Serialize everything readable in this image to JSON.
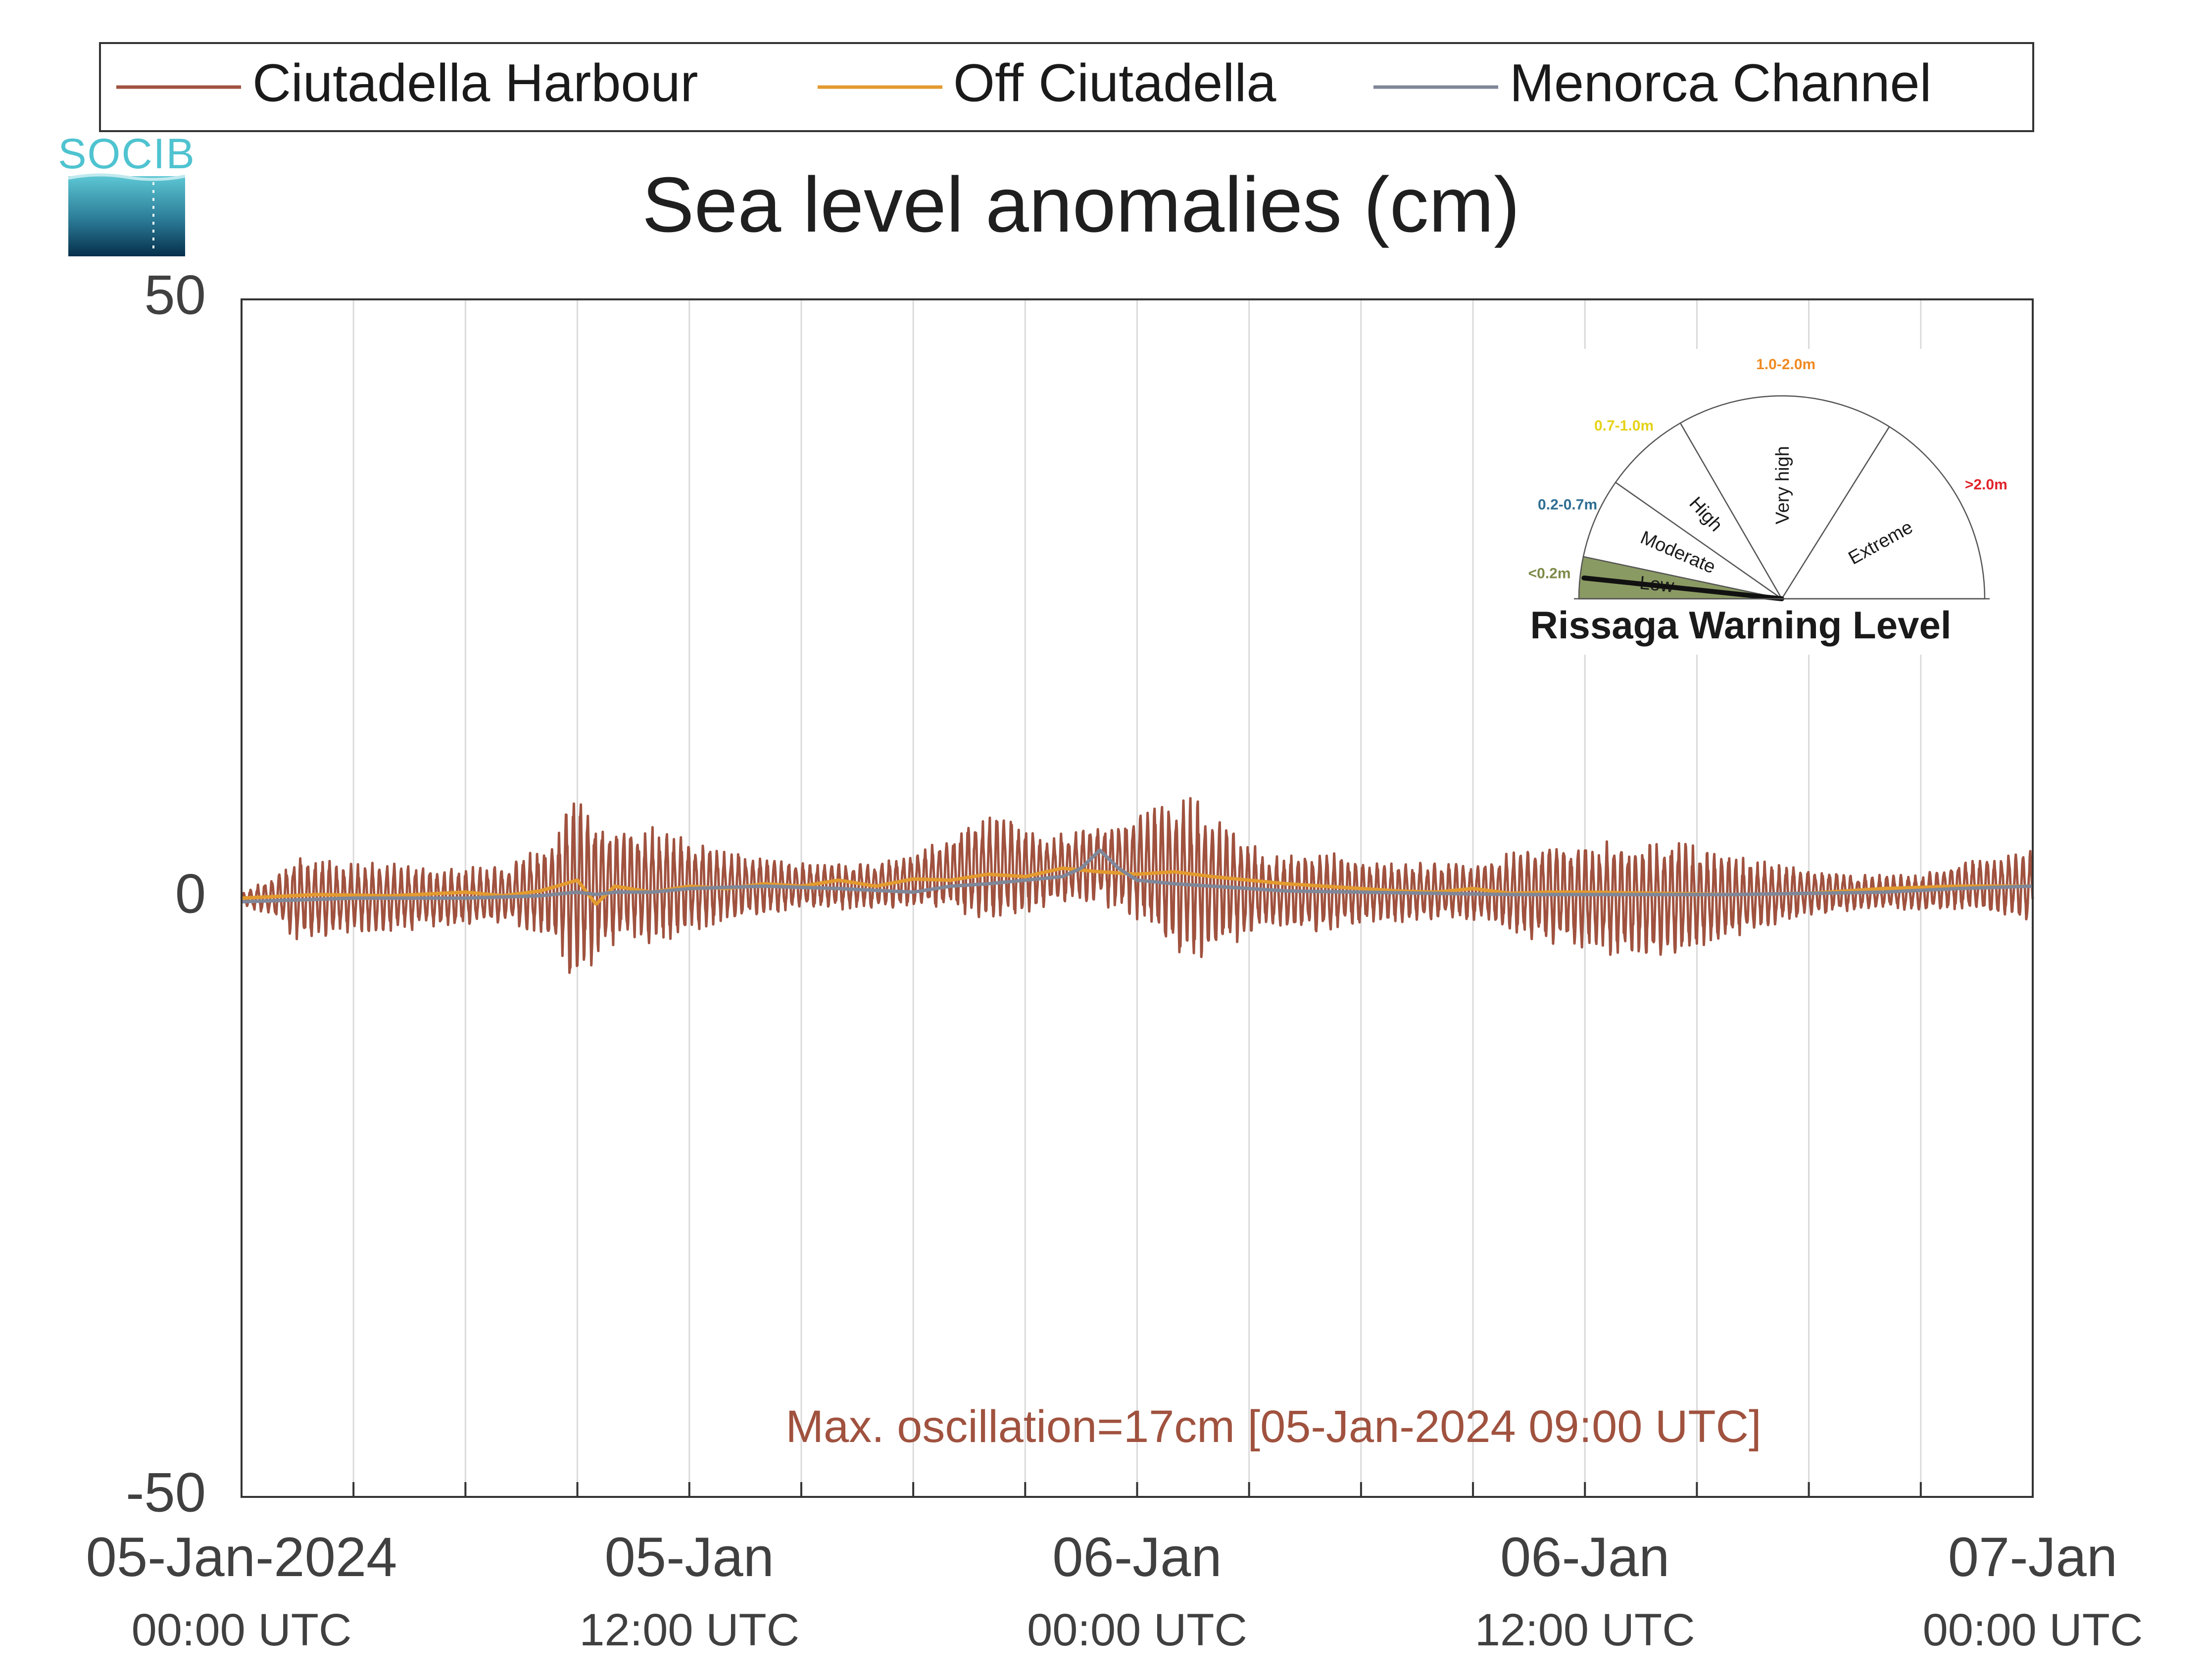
{
  "logo": {
    "text": "SOCIB",
    "colors": [
      "#4fc3d0",
      "#0a3a56"
    ]
  },
  "legend": {
    "entries": [
      {
        "label": "Ciutadella Harbour",
        "color": "#a0523f"
      },
      {
        "label": "Off Ciutadella",
        "color": "#e39a2f"
      },
      {
        "label": "Menorca Channel",
        "color": "#7f8799"
      }
    ]
  },
  "chart_data": {
    "type": "line",
    "title": "Sea level anomalies (cm)",
    "ylim": [
      -50,
      50
    ],
    "yticks": [
      50,
      0,
      -50
    ],
    "xlim": [
      0,
      48
    ],
    "x_unit": "hours from 05-Jan-2024 00:00 UTC",
    "xticks": [
      {
        "hour": 0,
        "date": "05-Jan-2024",
        "time": "00:00 UTC"
      },
      {
        "hour": 12,
        "date": "05-Jan",
        "time": "12:00 UTC"
      },
      {
        "hour": 24,
        "date": "06-Jan",
        "time": "00:00 UTC"
      },
      {
        "hour": 36,
        "date": "06-Jan",
        "time": "12:00 UTC"
      },
      {
        "hour": 48,
        "date": "07-Jan",
        "time": "00:00 UTC"
      }
    ],
    "grid_x_hours": [
      3,
      6,
      9,
      12,
      15,
      18,
      21,
      24,
      27,
      30,
      33,
      36,
      39,
      42,
      45
    ],
    "grid": true,
    "series": [
      {
        "name": "Ciutadella Harbour",
        "color": "#a0523f",
        "envelope": {
          "x_hours": [
            0,
            1,
            1.5,
            2.5,
            4,
            5.5,
            7,
            7.8,
            8.5,
            8.8,
            9,
            9.3,
            10,
            11,
            12,
            13,
            15,
            17,
            19,
            19.5,
            20.5,
            21.5,
            23,
            24,
            24.8,
            25.5,
            26.5,
            27.5,
            29,
            30.5,
            33,
            34.5,
            36,
            37,
            38.5,
            40,
            42,
            43.5,
            45,
            46,
            47,
            48
          ],
          "amplitude_cm": [
            0.5,
            2,
            4,
            3,
            3,
            2.5,
            2.5,
            3.5,
            5,
            8,
            8,
            7,
            5,
            5,
            4,
            3,
            2,
            2,
            3,
            4.5,
            4.5,
            3,
            3.5,
            4.5,
            6.5,
            7,
            5,
            3,
            3.5,
            2.5,
            2.5,
            4,
            4.5,
            5,
            5,
            3.5,
            2,
            1.5,
            1.5,
            2,
            2.5,
            3
          ],
          "baseline_cm": [
            0,
            0,
            0,
            0,
            0,
            0,
            0.2,
            0.5,
            0.8,
            1,
            1,
            1,
            1,
            1,
            1,
            1,
            1,
            1,
            2,
            2.5,
            2.5,
            2.2,
            3,
            2.5,
            2,
            1.5,
            1,
            0.5,
            0.5,
            0.5,
            0.5,
            0.5,
            0.2,
            0,
            0,
            0,
            0.5,
            0.5,
            0.5,
            1,
            1,
            1
          ]
        }
      },
      {
        "name": "Off Ciutadella",
        "color": "#e39a2f",
        "points_x_hours": [
          0,
          2,
          4,
          6,
          7,
          8,
          9,
          9.5,
          10,
          11,
          12,
          13,
          14,
          15,
          16,
          17,
          18,
          19,
          20,
          21,
          22,
          23,
          24,
          25,
          26,
          27,
          28,
          29,
          30,
          31,
          32,
          33,
          34,
          35,
          36,
          38,
          40,
          42,
          44,
          46,
          48
        ],
        "points_y_cm": [
          0,
          0.3,
          0.2,
          0.5,
          0.2,
          0.6,
          1.5,
          -0.5,
          1,
          0.5,
          1,
          0.8,
          1.2,
          1,
          1.5,
          1,
          1.6,
          1.5,
          2,
          1.8,
          2.5,
          2.2,
          2,
          2.2,
          1.8,
          1.5,
          1.2,
          1,
          0.8,
          0.6,
          0.5,
          0.8,
          0.4,
          0.5,
          0.5,
          0.4,
          0.3,
          0.4,
          0.8,
          1,
          1
        ]
      },
      {
        "name": "Menorca Channel",
        "color": "#7f8799",
        "points_x_hours": [
          0,
          3,
          6,
          8,
          9,
          9.5,
          10,
          11,
          12,
          14,
          16,
          18,
          19,
          20,
          21,
          22,
          22.5,
          23,
          23.5,
          24,
          25,
          26,
          27,
          28,
          30,
          32,
          34,
          36,
          38,
          40,
          42,
          44,
          46,
          48
        ],
        "points_y_cm": [
          -0.3,
          0,
          0,
          0.2,
          0.5,
          0.3,
          0.5,
          0.5,
          0.8,
          1,
          0.8,
          0.5,
          1,
          1.2,
          1.5,
          1.8,
          2.5,
          4,
          2.5,
          1.5,
          1.2,
          1,
          0.8,
          0.6,
          0.5,
          0.4,
          0.3,
          0.3,
          0.3,
          0.3,
          0.4,
          0.5,
          0.8,
          1
        ]
      }
    ],
    "annotation": {
      "text": "Max. oscillation=17cm [05-Jan-2024 09:00 UTC]",
      "color": "#a0523f"
    }
  },
  "gauge": {
    "title": "Rissaga Warning Level",
    "needle_level": "Low",
    "segments": [
      {
        "label": "Low",
        "range_label": "<0.2m",
        "range_color": "#7d8a4a",
        "fill": "#8a9a63"
      },
      {
        "label": "Moderate",
        "range_label": "0.2-0.7m",
        "range_color": "#2e6e93",
        "fill": "none"
      },
      {
        "label": "High",
        "range_label": "0.7-1.0m",
        "range_color": "#e6d21a",
        "fill": "none"
      },
      {
        "label": "Very high",
        "range_label": "1.0-2.0m",
        "range_color": "#ef8a22",
        "fill": "none"
      },
      {
        "label": "Extreme",
        "range_label": ">2.0m",
        "range_color": "#e0232a",
        "fill": "none"
      }
    ]
  }
}
